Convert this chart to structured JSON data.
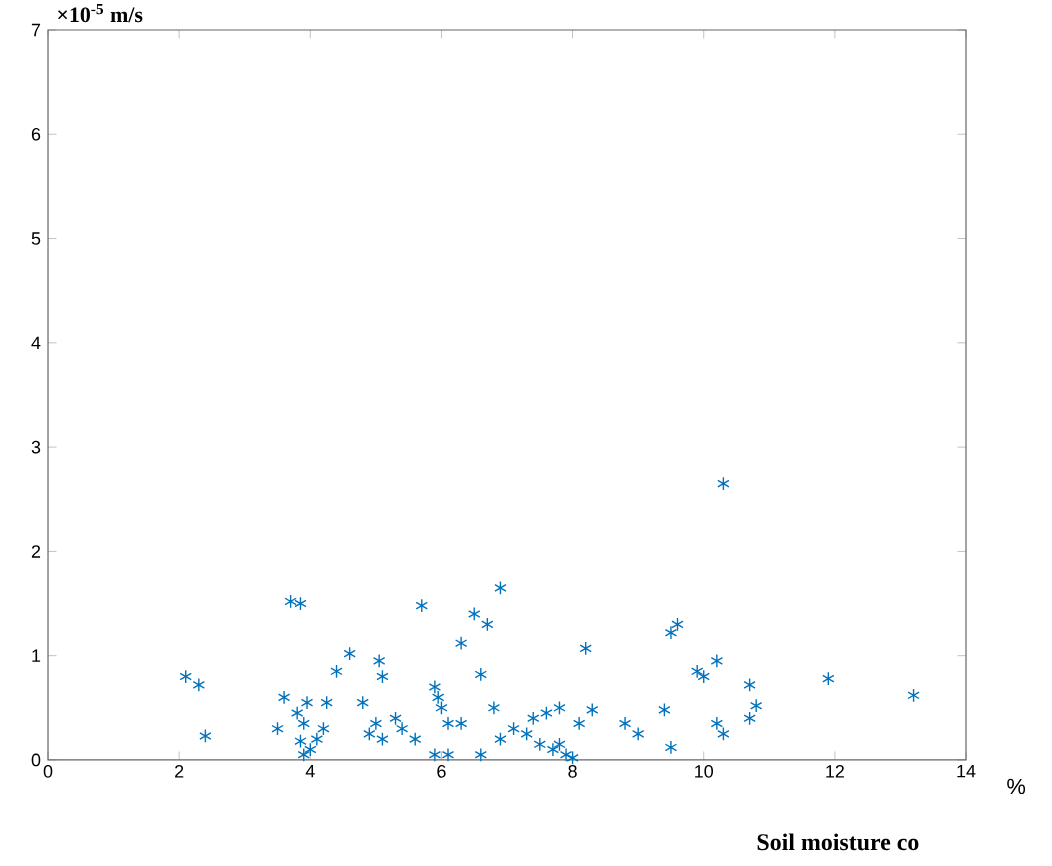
{
  "chart_data": {
    "type": "scatter",
    "xlabel": "Soil moisture co",
    "ylabel": "×10$^{-5}$ m/s",
    "annotations": [
      "%"
    ],
    "x": [
      2.1,
      2.3,
      2.4,
      3.7,
      3.85,
      3.6,
      3.5,
      3.8,
      3.9,
      3.95,
      3.85,
      3.9,
      4.0,
      4.1,
      4.2,
      4.25,
      4.4,
      4.6,
      4.8,
      4.9,
      5.0,
      5.05,
      5.1,
      5.1,
      5.3,
      5.4,
      5.6,
      5.7,
      5.9,
      5.95,
      6.0,
      5.9,
      6.1,
      6.1,
      6.3,
      6.3,
      6.5,
      6.6,
      6.7,
      6.9,
      6.8,
      6.6,
      6.9,
      7.1,
      7.3,
      7.4,
      7.6,
      7.5,
      7.7,
      7.8,
      7.9,
      8.0,
      7.8,
      8.1,
      8.2,
      8.3,
      8.8,
      9.0,
      9.4,
      9.5,
      9.5,
      9.6,
      9.9,
      10.0,
      10.2,
      10.3,
      10.2,
      10.3,
      10.7,
      10.8,
      10.7,
      11.9,
      13.2
    ],
    "values": [
      0.8,
      0.72,
      0.23,
      1.52,
      1.5,
      0.6,
      0.3,
      0.45,
      0.35,
      0.55,
      0.18,
      0.05,
      0.1,
      0.2,
      0.3,
      0.55,
      0.85,
      1.02,
      0.55,
      0.25,
      0.35,
      0.95,
      0.8,
      0.2,
      0.4,
      0.3,
      0.2,
      1.48,
      0.7,
      0.6,
      0.5,
      0.05,
      0.05,
      0.35,
      0.35,
      1.12,
      1.4,
      0.82,
      1.3,
      1.65,
      0.5,
      0.05,
      0.2,
      0.3,
      0.25,
      0.4,
      0.45,
      0.15,
      0.1,
      0.15,
      0.05,
      0.02,
      0.5,
      0.35,
      1.07,
      0.48,
      0.35,
      0.25,
      0.48,
      0.12,
      1.22,
      1.3,
      0.85,
      0.8,
      0.95,
      2.65,
      0.35,
      0.25,
      0.4,
      0.52,
      0.72,
      0.78,
      0.62
    ],
    "color": "#0072bd",
    "marker": "cross",
    "xlim": [
      0,
      14
    ],
    "ylim": [
      0,
      7
    ],
    "xticks": [
      0,
      2,
      4,
      6,
      8,
      10,
      12,
      14
    ],
    "yticks": [
      0,
      1,
      2,
      3,
      4,
      5,
      6,
      7
    ]
  }
}
